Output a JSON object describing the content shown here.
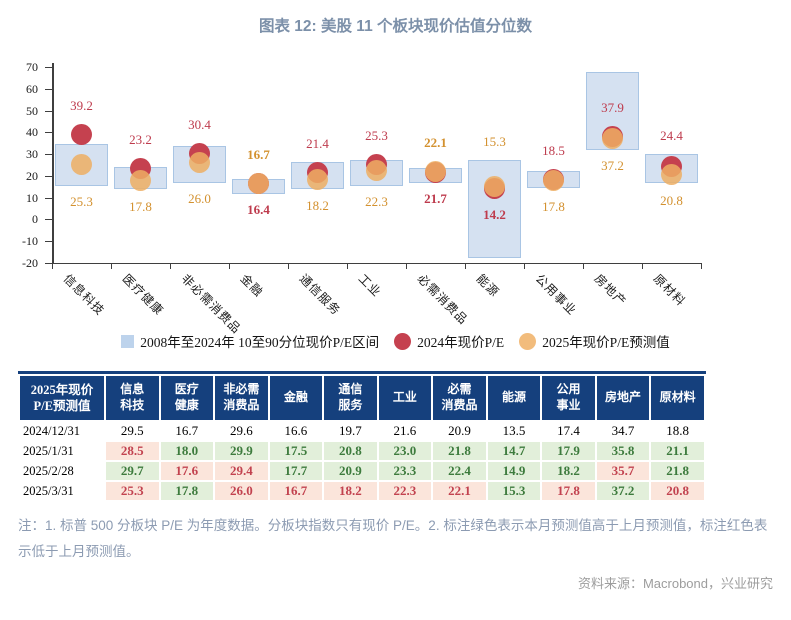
{
  "title": "图表 12: 美股 11 个板块现价估值分位数",
  "chart_data": {
    "type": "range-dot",
    "ylim": [
      -20,
      70
    ],
    "ytick_step": 10,
    "grid": false,
    "legend_position": "bottom",
    "categories": [
      "信息科技",
      "医疗健康",
      "非必需消费品",
      "金融",
      "通信服务",
      "工业",
      "必需消费品",
      "能源",
      "公用事业",
      "房地产",
      "原材料"
    ],
    "range_series": {
      "name": "2008年至2024年  10至90分位现价P/E区间",
      "low": [
        15.3,
        13.8,
        16.9,
        11.5,
        14.0,
        15.3,
        16.5,
        -18.0,
        14.6,
        31.9,
        16.9
      ],
      "high": [
        34.5,
        24.0,
        33.9,
        18.4,
        26.3,
        27.4,
        23.4,
        27.1,
        22.2,
        67.9,
        30.0
      ]
    },
    "dot_series": [
      {
        "name": "2024年现价P/E",
        "values": [
          39.2,
          23.2,
          30.4,
          16.4,
          21.4,
          25.3,
          21.7,
          14.2,
          18.5,
          37.9,
          24.4
        ],
        "bold": [
          false,
          false,
          false,
          true,
          false,
          false,
          true,
          true,
          false,
          false,
          false
        ]
      },
      {
        "name": "2025年现价P/E预测值",
        "values": [
          25.3,
          17.8,
          26.0,
          16.7,
          18.2,
          22.3,
          22.1,
          15.3,
          17.8,
          37.2,
          20.8
        ],
        "bold": [
          false,
          false,
          false,
          true,
          false,
          false,
          true,
          false,
          false,
          false,
          false
        ]
      }
    ]
  },
  "table": {
    "header": [
      "2025年现价\nP/E预测值",
      "信息\n科技",
      "医疗\n健康",
      "非必需\n消费品",
      "金融",
      "通信\n服务",
      "工业",
      "必需\n消费品",
      "能源",
      "公用\n事业",
      "房地产",
      "原材料"
    ],
    "rows": [
      {
        "date": "2024/12/31",
        "cells": [
          {
            "v": "29.5",
            "c": "plain"
          },
          {
            "v": "16.7",
            "c": "plain"
          },
          {
            "v": "29.6",
            "c": "plain"
          },
          {
            "v": "16.6",
            "c": "plain"
          },
          {
            "v": "19.7",
            "c": "plain"
          },
          {
            "v": "21.6",
            "c": "plain"
          },
          {
            "v": "20.9",
            "c": "plain"
          },
          {
            "v": "13.5",
            "c": "plain"
          },
          {
            "v": "17.4",
            "c": "plain"
          },
          {
            "v": "34.7",
            "c": "plain"
          },
          {
            "v": "18.8",
            "c": "plain"
          }
        ]
      },
      {
        "date": "2025/1/31",
        "cells": [
          {
            "v": "28.5",
            "c": "down"
          },
          {
            "v": "18.0",
            "c": "up"
          },
          {
            "v": "29.9",
            "c": "up"
          },
          {
            "v": "17.5",
            "c": "up"
          },
          {
            "v": "20.8",
            "c": "up"
          },
          {
            "v": "23.0",
            "c": "up"
          },
          {
            "v": "21.8",
            "c": "up"
          },
          {
            "v": "14.7",
            "c": "up"
          },
          {
            "v": "17.9",
            "c": "up"
          },
          {
            "v": "35.8",
            "c": "up"
          },
          {
            "v": "21.1",
            "c": "up"
          }
        ]
      },
      {
        "date": "2025/2/28",
        "cells": [
          {
            "v": "29.7",
            "c": "up"
          },
          {
            "v": "17.6",
            "c": "down"
          },
          {
            "v": "29.4",
            "c": "down"
          },
          {
            "v": "17.7",
            "c": "up"
          },
          {
            "v": "20.9",
            "c": "up"
          },
          {
            "v": "23.3",
            "c": "up"
          },
          {
            "v": "22.4",
            "c": "up"
          },
          {
            "v": "14.9",
            "c": "up"
          },
          {
            "v": "18.2",
            "c": "up"
          },
          {
            "v": "35.7",
            "c": "down"
          },
          {
            "v": "21.8",
            "c": "up"
          }
        ]
      },
      {
        "date": "2025/3/31",
        "cells": [
          {
            "v": "25.3",
            "c": "down"
          },
          {
            "v": "17.8",
            "c": "up"
          },
          {
            "v": "26.0",
            "c": "down"
          },
          {
            "v": "16.7",
            "c": "down"
          },
          {
            "v": "18.2",
            "c": "down"
          },
          {
            "v": "22.3",
            "c": "down"
          },
          {
            "v": "22.1",
            "c": "down"
          },
          {
            "v": "15.3",
            "c": "up"
          },
          {
            "v": "17.8",
            "c": "down"
          },
          {
            "v": "37.2",
            "c": "up"
          },
          {
            "v": "20.8",
            "c": "down"
          }
        ]
      }
    ]
  },
  "notes": "注：1. 标普 500 分板块 P/E 为年度数据。分板块指数只有现价 P/E。2. 标注绿色表示本月预测值高于上月预测值，标注红色表示低于上月预测值。",
  "source": "资料来源：Macrobond，兴业研究",
  "colors": {
    "range_fill": "#D5E1F1",
    "range_border": "#A9C5E4",
    "dot_2024": "#C5414F",
    "dot_2025": "#EDAE63",
    "label_2024": "#BE3B4D",
    "label_2025": "#D3912F",
    "legend_square": "#BDD3EC",
    "legend_orange": "#F2BC7C",
    "header_bg": "#15407D",
    "up_bg": "#E2EFDA",
    "up_text": "#3D7B3D",
    "down_bg": "#FBE5DB",
    "down_text": "#C2424F",
    "title_color": "#7C90A9",
    "note_color": "#8C9BB2",
    "source_color": "#9D9D9D",
    "axis_color": "#3F3F3F"
  }
}
